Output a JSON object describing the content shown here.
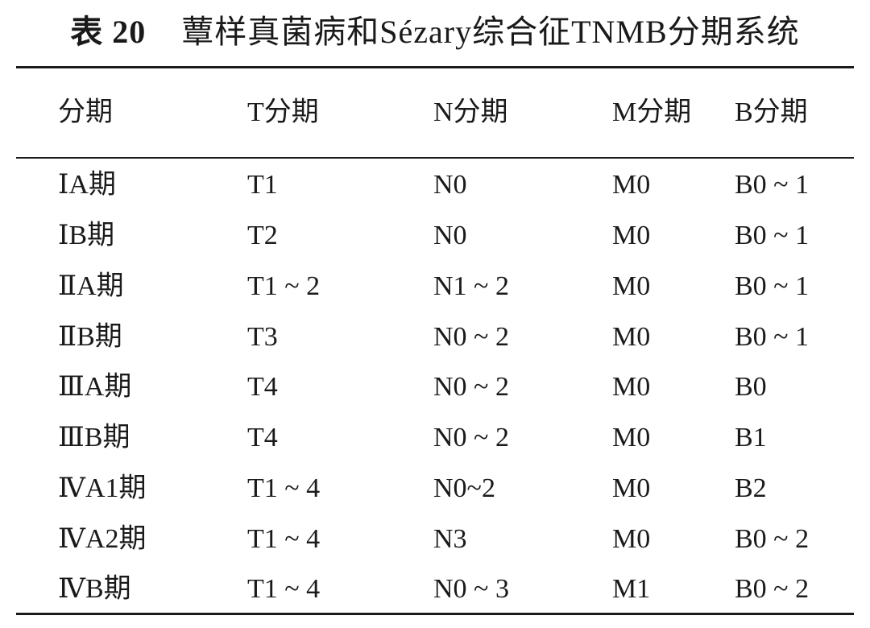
{
  "table": {
    "label": "表 20",
    "title": "蕈样真菌病和Sézary综合征TNMB分期系统",
    "headers": [
      "分期",
      "T分期",
      "N分期",
      "M分期",
      "B分期"
    ],
    "rows": [
      [
        "ⅠA期",
        "T1",
        "N0",
        "M0",
        "B0 ~ 1"
      ],
      [
        "ⅠB期",
        "T2",
        "N0",
        "M0",
        "B0 ~ 1"
      ],
      [
        "ⅡA期",
        "T1 ~ 2",
        "N1 ~ 2",
        "M0",
        "B0 ~ 1"
      ],
      [
        "ⅡB期",
        "T3",
        "N0 ~ 2",
        "M0",
        "B0 ~ 1"
      ],
      [
        "ⅢA期",
        "T4",
        "N0 ~ 2",
        "M0",
        "B0"
      ],
      [
        "ⅢB期",
        "T4",
        "N0 ~ 2",
        "M0",
        "B1"
      ],
      [
        "ⅣA1期",
        "T1 ~ 4",
        "N0~2",
        "M0",
        "B2"
      ],
      [
        "ⅣA2期",
        "T1 ~ 4",
        "N3",
        "M0",
        "B0 ~ 2"
      ],
      [
        "ⅣB期",
        "T1 ~ 4",
        "N0 ~ 3",
        "M1",
        "B0 ~ 2"
      ]
    ]
  }
}
